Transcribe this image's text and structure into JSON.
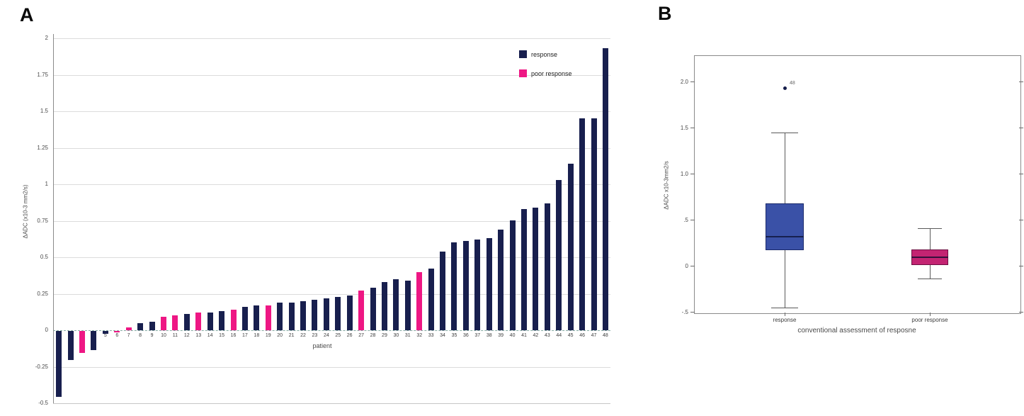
{
  "panels": {
    "a_label": "A",
    "b_label": "B"
  },
  "chart_data": [
    {
      "type": "bar",
      "title": "",
      "xlabel": "patient",
      "ylabel": "ΔADC (x10-3 mm2/s)",
      "ylim": [
        -0.5,
        2
      ],
      "grid": true,
      "legend_position": "top-right",
      "legend": [
        {
          "label": "response",
          "color": "#181f4e"
        },
        {
          "label": "poor response",
          "color": "#ee1784"
        }
      ],
      "yticks": [
        {
          "v": 2,
          "label": "2"
        },
        {
          "v": 1.75,
          "label": "1.75"
        },
        {
          "v": 1.5,
          "label": "1.5"
        },
        {
          "v": 1.25,
          "label": "1.25"
        },
        {
          "v": 1,
          "label": "1"
        },
        {
          "v": 0.75,
          "label": "0.75"
        },
        {
          "v": 0.5,
          "label": "0.5"
        },
        {
          "v": 0.25,
          "label": "0.25"
        },
        {
          "v": 0,
          "label": "0"
        },
        {
          "v": -0.25,
          "label": "-0.25"
        },
        {
          "v": -0.5,
          "label": "-0.5"
        }
      ],
      "points": [
        {
          "patient": 1,
          "label": "",
          "value": -0.45,
          "group": "response"
        },
        {
          "patient": 2,
          "label": "",
          "value": -0.2,
          "group": "response"
        },
        {
          "patient": 3,
          "label": "",
          "value": -0.15,
          "group": "poor response"
        },
        {
          "patient": 4,
          "label": "",
          "value": -0.13,
          "group": "response"
        },
        {
          "patient": 5,
          "label": "5",
          "value": -0.02,
          "group": "response"
        },
        {
          "patient": 6,
          "label": "6",
          "value": -0.01,
          "group": "poor response"
        },
        {
          "patient": 7,
          "label": "7",
          "value": 0.02,
          "group": "poor response"
        },
        {
          "patient": 8,
          "label": "8",
          "value": 0.05,
          "group": "response"
        },
        {
          "patient": 9,
          "label": "9",
          "value": 0.06,
          "group": "response"
        },
        {
          "patient": 10,
          "label": "10",
          "value": 0.09,
          "group": "poor response"
        },
        {
          "patient": 11,
          "label": "11",
          "value": 0.1,
          "group": "poor response"
        },
        {
          "patient": 12,
          "label": "12",
          "value": 0.11,
          "group": "response"
        },
        {
          "patient": 13,
          "label": "13",
          "value": 0.12,
          "group": "poor response"
        },
        {
          "patient": 14,
          "label": "14",
          "value": 0.12,
          "group": "response"
        },
        {
          "patient": 15,
          "label": "15",
          "value": 0.13,
          "group": "response"
        },
        {
          "patient": 16,
          "label": "16",
          "value": 0.14,
          "group": "poor response"
        },
        {
          "patient": 17,
          "label": "17",
          "value": 0.16,
          "group": "response"
        },
        {
          "patient": 18,
          "label": "18",
          "value": 0.17,
          "group": "response"
        },
        {
          "patient": 19,
          "label": "19",
          "value": 0.17,
          "group": "poor response"
        },
        {
          "patient": 20,
          "label": "20",
          "value": 0.19,
          "group": "response"
        },
        {
          "patient": 21,
          "label": "21",
          "value": 0.19,
          "group": "response"
        },
        {
          "patient": 22,
          "label": "22",
          "value": 0.2,
          "group": "response"
        },
        {
          "patient": 23,
          "label": "23",
          "value": 0.21,
          "group": "response"
        },
        {
          "patient": 24,
          "label": "24",
          "value": 0.22,
          "group": "response"
        },
        {
          "patient": 25,
          "label": "25",
          "value": 0.23,
          "group": "response"
        },
        {
          "patient": 26,
          "label": "26",
          "value": 0.24,
          "group": "response"
        },
        {
          "patient": 27,
          "label": "27",
          "value": 0.27,
          "group": "poor response"
        },
        {
          "patient": 28,
          "label": "28",
          "value": 0.29,
          "group": "response"
        },
        {
          "patient": 29,
          "label": "29",
          "value": 0.33,
          "group": "response"
        },
        {
          "patient": 30,
          "label": "30",
          "value": 0.35,
          "group": "response"
        },
        {
          "patient": 31,
          "label": "31",
          "value": 0.34,
          "group": "response"
        },
        {
          "patient": 32,
          "label": "32",
          "value": 0.4,
          "group": "poor response"
        },
        {
          "patient": 33,
          "label": "33",
          "value": 0.42,
          "group": "response"
        },
        {
          "patient": 34,
          "label": "34",
          "value": 0.54,
          "group": "response"
        },
        {
          "patient": 35,
          "label": "35",
          "value": 0.6,
          "group": "response"
        },
        {
          "patient": 36,
          "label": "36",
          "value": 0.61,
          "group": "response"
        },
        {
          "patient": 37,
          "label": "37",
          "value": 0.62,
          "group": "response"
        },
        {
          "patient": 38,
          "label": "38",
          "value": 0.63,
          "group": "response"
        },
        {
          "patient": 39,
          "label": "39",
          "value": 0.69,
          "group": "response"
        },
        {
          "patient": 40,
          "label": "40",
          "value": 0.75,
          "group": "response"
        },
        {
          "patient": 41,
          "label": "41",
          "value": 0.83,
          "group": "response"
        },
        {
          "patient": 42,
          "label": "42",
          "value": 0.84,
          "group": "response"
        },
        {
          "patient": 43,
          "label": "43",
          "value": 0.87,
          "group": "response"
        },
        {
          "patient": 44,
          "label": "44",
          "value": 1.03,
          "group": "response"
        },
        {
          "patient": 45,
          "label": "45",
          "value": 1.14,
          "group": "response"
        },
        {
          "patient": 46,
          "label": "46",
          "value": 1.45,
          "group": "response"
        },
        {
          "patient": 47,
          "label": "47",
          "value": 1.45,
          "group": "response"
        },
        {
          "patient": 48,
          "label": "48",
          "value": 1.93,
          "group": "response"
        }
      ]
    },
    {
      "type": "boxplot",
      "title": "",
      "xlabel": "conventional assessment of resposne",
      "ylabel": "ΔADC x10-3mm2/s",
      "ylim": [
        -0.5,
        2.3
      ],
      "yticks": [
        {
          "v": 2.0,
          "label": "2.0"
        },
        {
          "v": 1.5,
          "label": "1.5"
        },
        {
          "v": 1.0,
          "label": "1.0"
        },
        {
          "v": 0.5,
          "label": ".5"
        },
        {
          "v": 0,
          "label": "0"
        },
        {
          "v": -0.5,
          "label": "-.5"
        }
      ],
      "groups": [
        {
          "label": "response",
          "q1": 0.17,
          "median": 0.32,
          "q3": 0.68,
          "whisker_low": -0.45,
          "whisker_high": 1.45,
          "outliers": [
            {
              "label": "48",
              "value": 1.93
            }
          ],
          "fill": "#3a51a7",
          "border": "#1b2a6b",
          "median_color": "#17204f"
        },
        {
          "label": "poor response",
          "q1": 0.01,
          "median": 0.1,
          "q3": 0.18,
          "whisker_low": -0.14,
          "whisker_high": 0.41,
          "outliers": [],
          "fill": "#c32472",
          "border": "#6d0f42",
          "median_color": "#35103c"
        }
      ]
    }
  ]
}
